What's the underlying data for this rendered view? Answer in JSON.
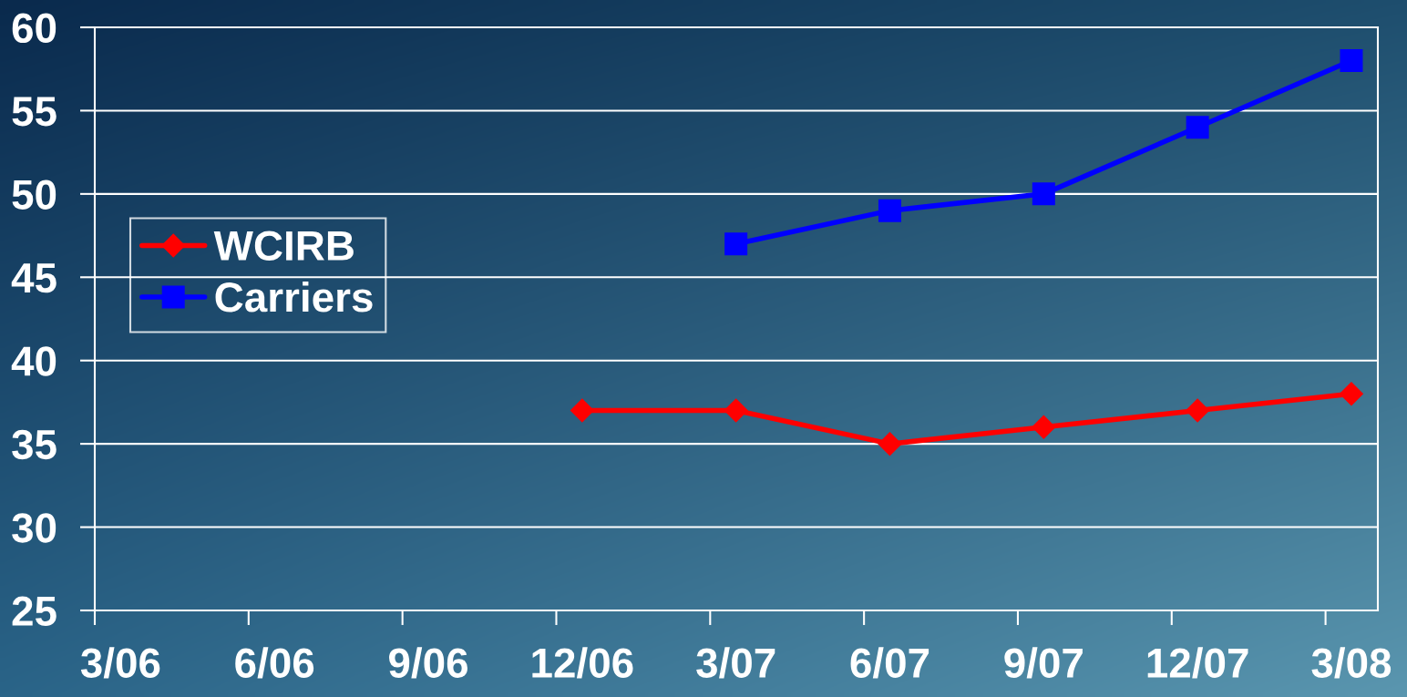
{
  "chart_data": {
    "type": "line",
    "categories": [
      "3/06",
      "6/06",
      "9/06",
      "12/06",
      "3/07",
      "6/07",
      "9/07",
      "12/07",
      "3/08"
    ],
    "series": [
      {
        "name": "WCIRB",
        "color": "#ff0000",
        "marker": "diamond",
        "values": [
          null,
          null,
          null,
          37,
          37,
          35,
          36,
          37,
          38
        ]
      },
      {
        "name": "Carriers",
        "color": "#0000ff",
        "marker": "square",
        "values": [
          null,
          null,
          null,
          null,
          47,
          49,
          50,
          54,
          58
        ]
      }
    ],
    "ylim": [
      25,
      60
    ],
    "yticks": [
      25,
      30,
      35,
      40,
      45,
      50,
      55,
      60
    ],
    "grid": "y",
    "legend": "left",
    "line_style": "solid"
  }
}
